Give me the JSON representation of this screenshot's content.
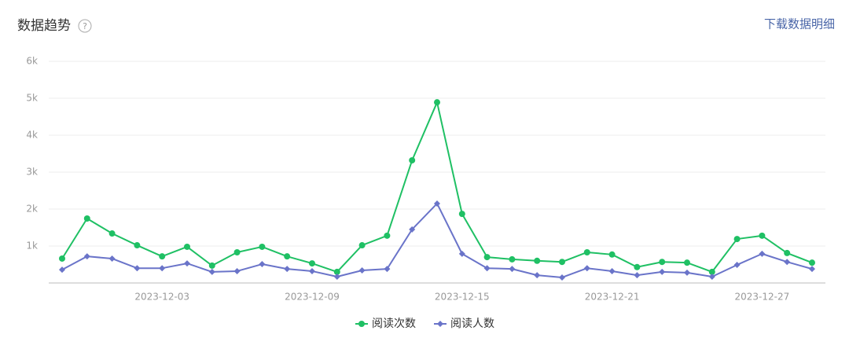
{
  "header": {
    "title": "数据趋势",
    "help": "?",
    "link": "下载数据明细"
  },
  "chart_data": {
    "type": "line",
    "categories": [
      null,
      null,
      null,
      null,
      "2023-12-03",
      null,
      null,
      null,
      null,
      null,
      "2023-12-09",
      null,
      null,
      null,
      null,
      null,
      "2023-12-15",
      null,
      null,
      null,
      null,
      null,
      "2023-12-21",
      null,
      null,
      null,
      null,
      null,
      "2023-12-27",
      null,
      null
    ],
    "series": [
      {
        "name": "阅读次数",
        "color": "#1fc064",
        "marker": "circle",
        "values": [
          660,
          1745,
          1340,
          1020,
          720,
          980,
          470,
          830,
          980,
          720,
          530,
          300,
          1020,
          1280,
          3320,
          4890,
          1870,
          700,
          640,
          600,
          570,
          830,
          770,
          430,
          570,
          550,
          300,
          1190,
          1280,
          810,
          550
        ]
      },
      {
        "name": "阅读人数",
        "color": "#6a74c9",
        "marker": "diamond",
        "values": [
          360,
          720,
          660,
          400,
          400,
          530,
          300,
          320,
          510,
          380,
          320,
          170,
          340,
          380,
          1450,
          2150,
          790,
          400,
          380,
          210,
          150,
          400,
          320,
          210,
          300,
          280,
          170,
          490,
          790,
          570,
          380
        ]
      }
    ],
    "ylim": [
      0,
      6000
    ],
    "yticks": [
      {
        "value": 1000,
        "label": "1k"
      },
      {
        "value": 2000,
        "label": "2k"
      },
      {
        "value": 3000,
        "label": "3k"
      },
      {
        "value": 4000,
        "label": "4k"
      },
      {
        "value": 5000,
        "label": "5k"
      },
      {
        "value": 6000,
        "label": "6k"
      }
    ],
    "grid": true
  }
}
